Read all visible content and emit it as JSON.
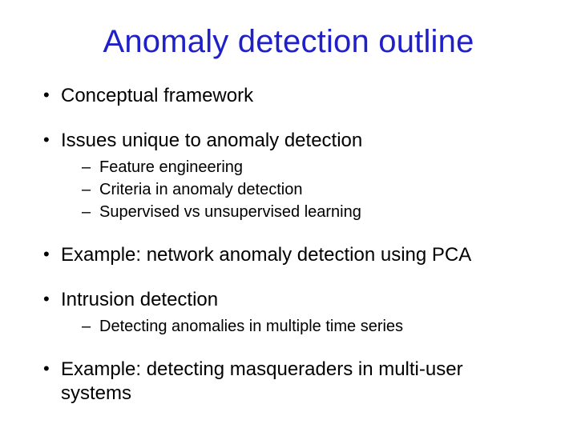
{
  "title": {
    "text": "Anomaly detection outline",
    "color": "#2020c8",
    "fontsize": 40
  },
  "body": {
    "fontsize_level1": 24,
    "fontsize_level2": 20,
    "text_color": "#000000",
    "bullet_level1_glyph": "•",
    "bullet_level2_glyph": "–"
  },
  "bullets": [
    {
      "text": "Conceptual framework",
      "sub": []
    },
    {
      "text": "Issues unique to anomaly detection",
      "sub": [
        "Feature engineering",
        "Criteria in anomaly detection",
        "Supervised vs unsupervised learning"
      ]
    },
    {
      "text": "Example: network anomaly detection using PCA",
      "sub": []
    },
    {
      "text": "Intrusion detection",
      "sub": [
        "Detecting anomalies in multiple time series"
      ]
    },
    {
      "text": "Example: detecting masqueraders in multi-user systems",
      "sub": []
    }
  ],
  "background_color": "#ffffff"
}
